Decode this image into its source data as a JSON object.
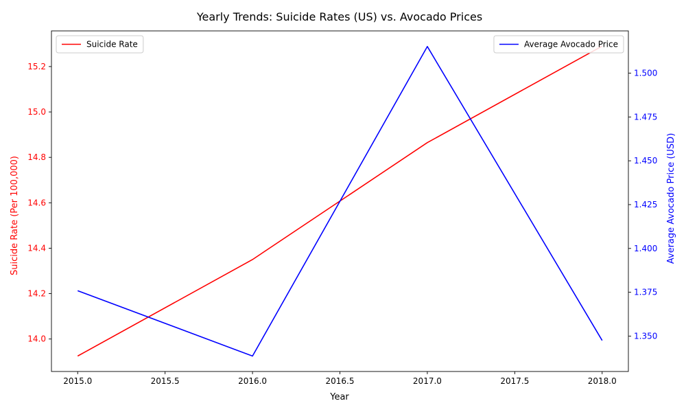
{
  "chart_data": {
    "type": "line",
    "title": "Yearly Trends: Suicide Rates (US) vs. Avocado Prices",
    "xlabel": "Year",
    "x": [
      2015,
      2016,
      2017,
      2018
    ],
    "xlim": [
      2014.85,
      2018.15
    ],
    "xticks": [
      2015.0,
      2015.5,
      2016.0,
      2016.5,
      2017.0,
      2017.5,
      2018.0
    ],
    "xtick_labels": [
      "2015.0",
      "2015.5",
      "2016.0",
      "2016.5",
      "2017.0",
      "2017.5",
      "2018.0"
    ],
    "grid": false,
    "series": [
      {
        "name": "Suicide Rate",
        "axis": "left",
        "color": "#ff0000",
        "values": [
          13.925,
          14.35,
          14.865,
          15.29
        ]
      },
      {
        "name": "Average Avocado Price",
        "axis": "right",
        "color": "#0000ff",
        "values": [
          1.3759,
          1.3386,
          1.5152,
          1.3475
        ]
      }
    ],
    "y_left": {
      "label": "Suicide Rate (Per 100,000)",
      "color": "#ff0000",
      "ylim": [
        13.857,
        15.357
      ],
      "ticks": [
        14.0,
        14.2,
        14.4,
        14.6,
        14.8,
        15.0,
        15.2
      ],
      "tick_labels": [
        "14.0",
        "14.2",
        "14.4",
        "14.6",
        "14.8",
        "15.0",
        "15.2"
      ]
    },
    "y_right": {
      "label": "Average Avocado Price (USD)",
      "color": "#0000ff",
      "ylim": [
        1.3298,
        1.5241
      ],
      "ticks": [
        1.35,
        1.375,
        1.4,
        1.425,
        1.45,
        1.475,
        1.5
      ],
      "tick_labels": [
        "1.350",
        "1.375",
        "1.400",
        "1.425",
        "1.450",
        "1.475",
        "1.500"
      ]
    },
    "legends": [
      {
        "placement": "upper left",
        "entries": [
          "Suicide Rate"
        ]
      },
      {
        "placement": "upper right",
        "entries": [
          "Average Avocado Price"
        ]
      }
    ]
  }
}
